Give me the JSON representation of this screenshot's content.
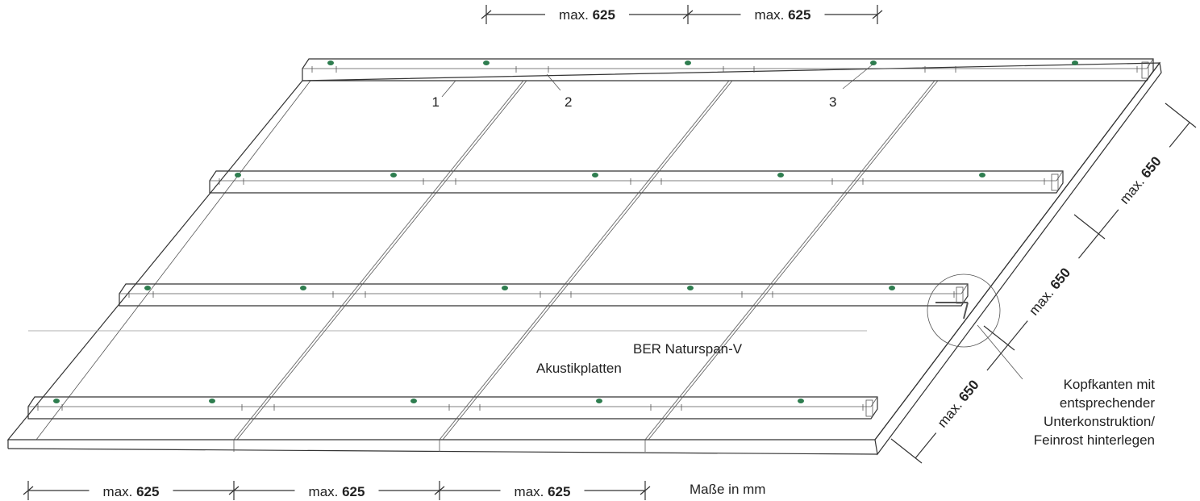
{
  "dimensions": {
    "top": [
      {
        "prefix": "max.",
        "value": "625"
      },
      {
        "prefix": "max.",
        "value": "625"
      }
    ],
    "bottom": [
      {
        "prefix": "max.",
        "value": "625"
      },
      {
        "prefix": "max.",
        "value": "625"
      },
      {
        "prefix": "max.",
        "value": "625"
      }
    ],
    "right": [
      {
        "prefix": "max.",
        "value": "650"
      },
      {
        "prefix": "max.",
        "value": "650"
      },
      {
        "prefix": "max.",
        "value": "650"
      }
    ]
  },
  "part_numbers": [
    "1",
    "2",
    "3"
  ],
  "product": {
    "name": "BER Naturspan-V",
    "type": "Akustikplatten"
  },
  "note": {
    "lines": [
      "Kopfkanten mit",
      "entsprechender",
      "Unterkonstruktion/",
      "Feinrost hinterlegen"
    ]
  },
  "units": "Maße in mm"
}
